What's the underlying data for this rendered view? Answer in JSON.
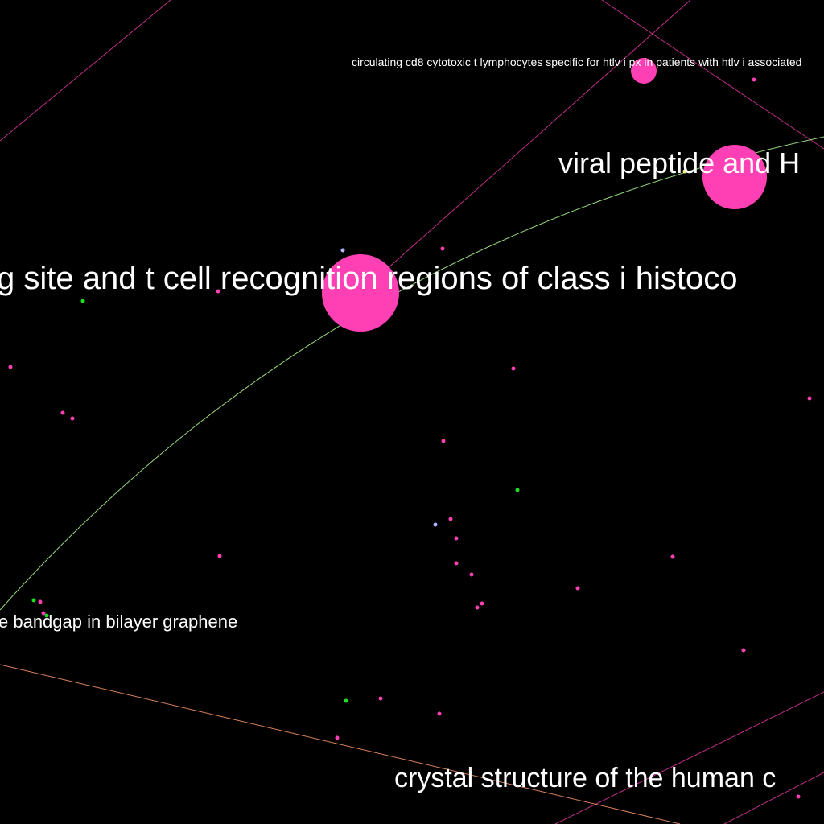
{
  "colors": {
    "background": "#000000",
    "node_pink": "#ff3fb4",
    "node_green": "#1fe01f",
    "node_lavender": "#b7b7ff",
    "node_yellow": "#f4f48a",
    "edge_pink": "#ff3fb4",
    "edge_green": "#b0ff90",
    "edge_orange": "#ff9a6a",
    "label": "#ffffff"
  },
  "labels": {
    "circulating": "circulating cd8 cytotoxic t lymphocytes specific for htlv i px in patients with htlv i associated",
    "viral_peptide": "viral peptide and H",
    "binding_site": "g site and t cell recognition regions of class i histoco",
    "bandgap": "e bandgap in bilayer graphene",
    "crystal": "crystal structure of the human c"
  }
}
